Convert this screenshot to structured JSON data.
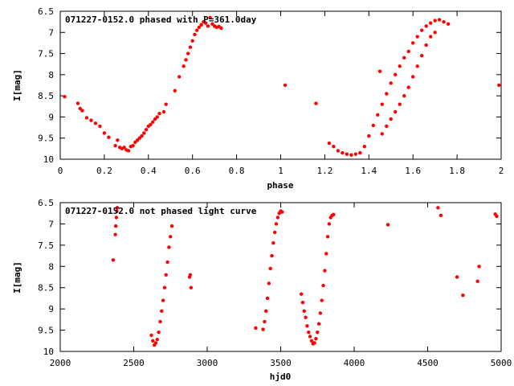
{
  "chart_data": [
    {
      "type": "scatter",
      "title": "071227-0152.0 phased with P=361.0day",
      "xlabel": "phase",
      "ylabel": "I[mag]",
      "xlim": [
        0,
        2
      ],
      "ylim": [
        6.5,
        10
      ],
      "y_inverted": true,
      "x_ticks": [
        "0",
        "0.2",
        "0.4",
        "0.6",
        "0.8",
        "1",
        "1.2",
        "1.4",
        "1.6",
        "1.8",
        "2"
      ],
      "y_ticks": [
        "6.5",
        "7",
        "7.5",
        "8",
        "8.5",
        "9",
        "9.5",
        "10"
      ],
      "marker_color": "#ff0000",
      "series": [
        {
          "x": [
            0.02,
            0.08,
            0.09,
            0.1,
            0.12,
            0.14,
            0.16,
            0.18,
            0.2,
            0.22,
            0.25,
            0.26,
            0.27,
            0.28,
            0.29,
            0.3,
            0.31,
            0.32,
            0.33,
            0.34,
            0.35,
            0.36,
            0.37,
            0.38,
            0.39,
            0.4,
            0.41,
            0.42,
            0.43,
            0.44,
            0.45,
            0.47,
            0.48,
            0.52,
            0.54,
            0.56,
            0.57,
            0.58,
            0.59,
            0.6,
            0.61,
            0.62,
            0.63,
            0.64,
            0.65,
            0.66,
            0.67,
            0.68,
            0.69,
            0.7,
            0.71,
            0.72,
            0.73,
            1.02,
            1.16,
            1.22,
            1.24,
            1.26,
            1.28,
            1.3,
            1.32,
            1.34,
            1.36,
            1.38,
            1.4,
            1.42,
            1.44,
            1.46,
            1.48,
            1.5,
            1.52,
            1.54,
            1.56,
            1.58,
            1.6,
            1.62,
            1.64,
            1.66,
            1.68,
            1.7,
            1.72,
            1.74,
            1.76,
            1.46,
            1.48,
            1.5,
            1.52,
            1.54,
            1.56,
            1.58,
            1.6,
            1.62,
            1.64,
            1.66,
            1.68,
            1.7,
            1.45,
            1.99
          ],
          "y": [
            8.52,
            8.68,
            8.8,
            8.85,
            9.02,
            9.08,
            9.15,
            9.22,
            9.38,
            9.48,
            9.68,
            9.55,
            9.72,
            9.75,
            9.72,
            9.78,
            9.8,
            9.7,
            9.68,
            9.6,
            9.55,
            9.5,
            9.45,
            9.38,
            9.3,
            9.22,
            9.18,
            9.12,
            9.05,
            9.0,
            8.92,
            8.88,
            8.7,
            8.38,
            8.05,
            7.8,
            7.65,
            7.5,
            7.35,
            7.2,
            7.05,
            6.95,
            6.88,
            6.82,
            6.75,
            6.78,
            6.85,
            6.65,
            6.8,
            6.85,
            6.88,
            6.86,
            6.9,
            8.25,
            8.68,
            9.62,
            9.7,
            9.8,
            9.85,
            9.88,
            9.9,
            9.88,
            9.85,
            9.7,
            9.45,
            9.2,
            8.95,
            8.7,
            8.45,
            8.2,
            8.0,
            7.8,
            7.6,
            7.45,
            7.25,
            7.1,
            6.95,
            6.85,
            6.78,
            6.72,
            6.7,
            6.75,
            6.8,
            9.4,
            9.22,
            9.05,
            8.88,
            8.7,
            8.5,
            8.3,
            8.05,
            7.8,
            7.55,
            7.3,
            7.1,
            7.0,
            7.92,
            8.25
          ]
        }
      ]
    },
    {
      "type": "scatter",
      "title": "071227-0152.0 not phased light curve",
      "xlabel": "hjd0",
      "ylabel": "I[mag]",
      "xlim": [
        2000,
        5000
      ],
      "ylim": [
        6.5,
        10
      ],
      "y_inverted": true,
      "x_ticks": [
        "2000",
        "2500",
        "3000",
        "3500",
        "4000",
        "4500",
        "5000"
      ],
      "y_ticks": [
        "6.5",
        "7",
        "7.5",
        "8",
        "8.5",
        "9",
        "9.5",
        "10"
      ],
      "marker_color": "#ff0000",
      "series": [
        {
          "x": [
            2360,
            2375,
            2378,
            2382,
            2385,
            2388,
            2620,
            2630,
            2640,
            2650,
            2660,
            2670,
            2680,
            2690,
            2700,
            2710,
            2720,
            2730,
            2740,
            2750,
            2760,
            2880,
            2885,
            2890,
            3330,
            3380,
            3390,
            3400,
            3410,
            3420,
            3430,
            3440,
            3450,
            3460,
            3470,
            3480,
            3490,
            3500,
            3510,
            3640,
            3650,
            3660,
            3670,
            3680,
            3690,
            3700,
            3710,
            3720,
            3730,
            3740,
            3750,
            3760,
            3770,
            3780,
            3790,
            3800,
            3810,
            3820,
            3830,
            3840,
            3850,
            3860,
            4230,
            4570,
            4590,
            4700,
            4740,
            4840,
            4850,
            4960,
            4970
          ],
          "y": [
            7.85,
            7.25,
            7.05,
            6.85,
            6.7,
            6.62,
            9.62,
            9.75,
            9.85,
            9.8,
            9.72,
            9.55,
            9.3,
            9.05,
            8.8,
            8.5,
            8.2,
            7.9,
            7.55,
            7.3,
            7.05,
            8.25,
            8.2,
            8.5,
            9.45,
            9.48,
            9.3,
            9.05,
            8.75,
            8.4,
            8.05,
            7.75,
            7.45,
            7.2,
            7.0,
            6.85,
            6.75,
            6.7,
            6.72,
            8.65,
            8.85,
            9.05,
            9.2,
            9.4,
            9.55,
            9.65,
            9.75,
            9.82,
            9.8,
            9.7,
            9.55,
            9.35,
            9.1,
            8.8,
            8.45,
            8.1,
            7.7,
            7.3,
            7.0,
            6.85,
            6.8,
            6.78,
            7.02,
            6.62,
            6.8,
            8.25,
            8.68,
            8.35,
            8.0,
            6.77,
            6.82
          ]
        }
      ]
    }
  ]
}
